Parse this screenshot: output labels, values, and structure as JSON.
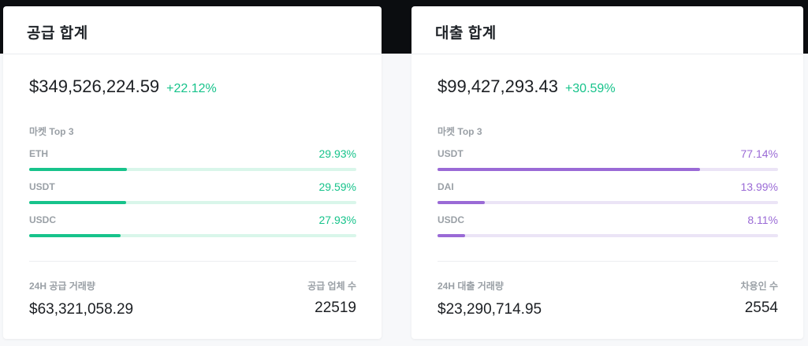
{
  "colors": {
    "supply_accent": "#17c38b",
    "supply_track": "#d9f6ea",
    "borrow_accent": "#9a6ad6",
    "borrow_track": "#ebe4f6"
  },
  "supply": {
    "title": "공급 합계",
    "total": "$349,526,224.59",
    "change": "+22.12%",
    "market_caption": "마켓 Top 3",
    "markets": [
      {
        "name": "ETH",
        "pct_label": "29.93%",
        "share": 0.2993
      },
      {
        "name": "USDT",
        "pct_label": "29.59%",
        "share": 0.2959
      },
      {
        "name": "USDC",
        "pct_label": "27.93%",
        "share": 0.2793
      }
    ],
    "volume_label": "24H 공급 거래량",
    "volume_value": "$63,321,058.29",
    "count_label": "공급 업체 수",
    "count_value": "22519"
  },
  "borrow": {
    "title": "대출 합계",
    "total": "$99,427,293.43",
    "change": "+30.59%",
    "market_caption": "마켓 Top 3",
    "markets": [
      {
        "name": "USDT",
        "pct_label": "77.14%",
        "share": 0.7714
      },
      {
        "name": "DAI",
        "pct_label": "13.99%",
        "share": 0.1399
      },
      {
        "name": "USDC",
        "pct_label": "8.11%",
        "share": 0.0811
      }
    ],
    "volume_label": "24H 대출 거래량",
    "volume_value": "$23,290,714.95",
    "count_label": "차용인 수",
    "count_value": "2554"
  }
}
